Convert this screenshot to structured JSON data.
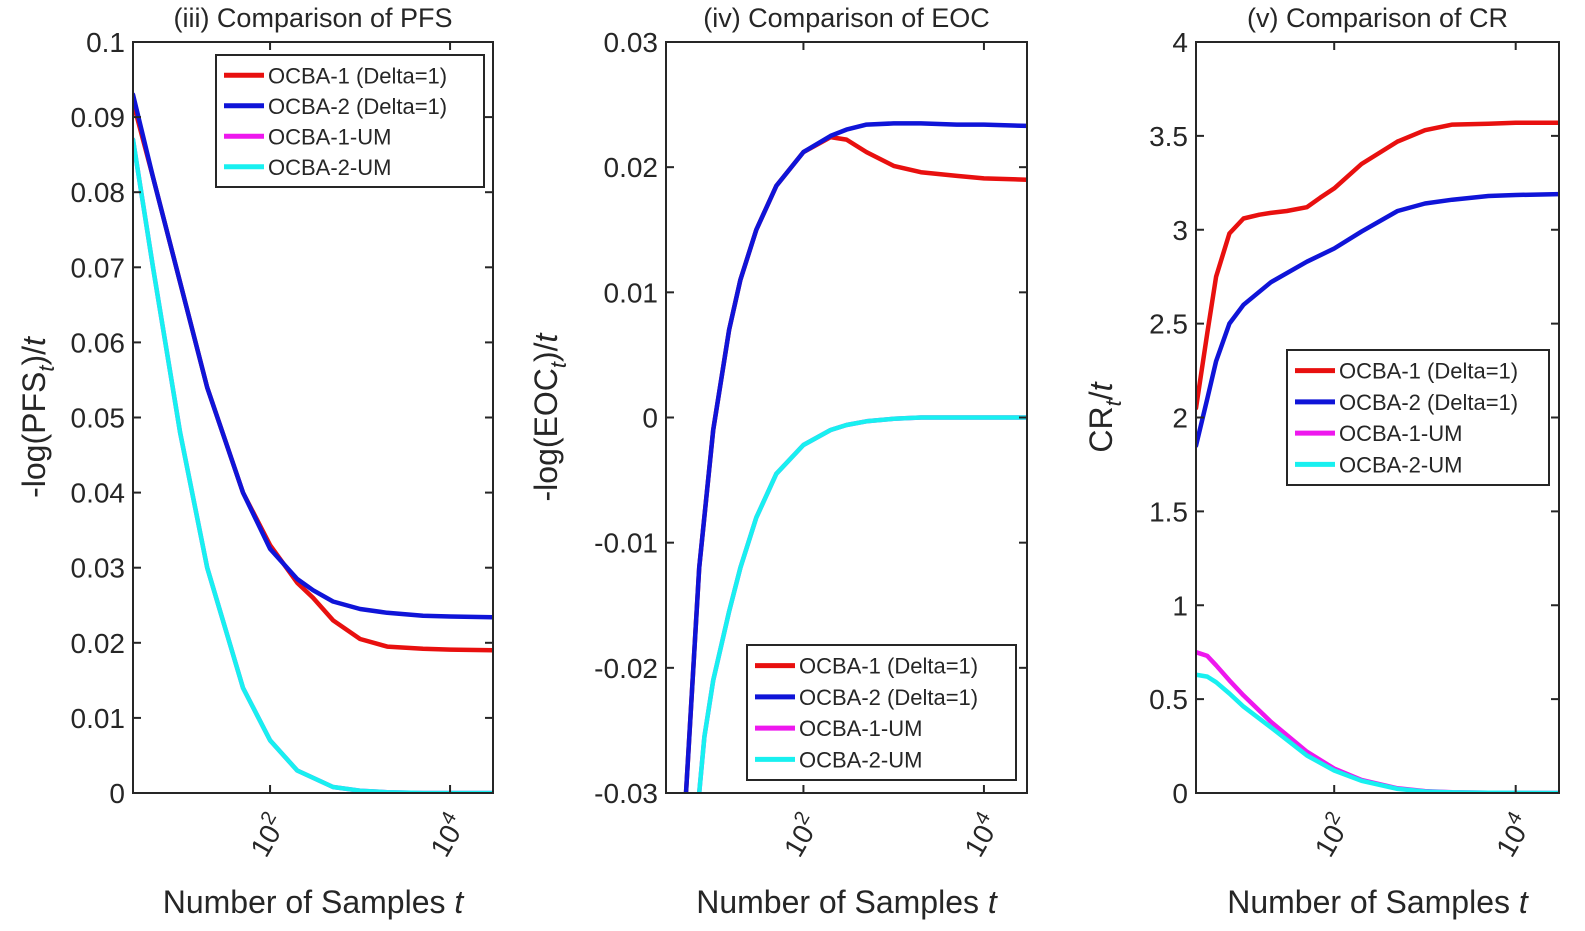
{
  "figure": {
    "xlabel_text": "Number of Samples ",
    "xlabel_var": "t"
  },
  "colors": {
    "ocba1": "#e8100f",
    "ocba2": "#0f14d8",
    "ocba1um": "#ee18ee",
    "ocba2um": "#18f0f0",
    "axis": "#262626"
  },
  "chart_data": [
    {
      "type": "line",
      "title": "(iii) Comparison of PFS",
      "ylabel": {
        "pre": "-log(PFS",
        "sub": "t",
        "post": ")/",
        "var": "t"
      },
      "xscale": "log",
      "xlim": [
        3,
        30000
      ],
      "ylim": [
        0,
        0.1
      ],
      "yticks": [
        0,
        0.01,
        0.02,
        0.03,
        0.04,
        0.05,
        0.06,
        0.07,
        0.08,
        0.09,
        0.1
      ],
      "ytick_labels": [
        "0",
        "0.01",
        "0.02",
        "0.03",
        "0.04",
        "0.05",
        "0.06",
        "0.07",
        "0.08",
        "0.09",
        "0.1"
      ],
      "xticks": [
        100,
        10000
      ],
      "xtick_labels": [
        {
          "base": "10",
          "exp": "2"
        },
        {
          "base": "10",
          "exp": "4"
        }
      ],
      "legend_position": "top-right",
      "series": [
        {
          "name": "OCBA-1 (Delta=1)",
          "color_key": "ocba1",
          "x": [
            3,
            5,
            10,
            20,
            50,
            100,
            200,
            300,
            500,
            1000,
            2000,
            5000,
            10000,
            30000
          ],
          "y": [
            0.092,
            0.082,
            0.068,
            0.054,
            0.04,
            0.033,
            0.028,
            0.026,
            0.023,
            0.0205,
            0.0195,
            0.0192,
            0.0191,
            0.019
          ]
        },
        {
          "name": "OCBA-2 (Delta=1)",
          "color_key": "ocba2",
          "x": [
            3,
            5,
            10,
            20,
            50,
            100,
            200,
            300,
            500,
            1000,
            2000,
            5000,
            10000,
            30000
          ],
          "y": [
            0.093,
            0.082,
            0.068,
            0.054,
            0.04,
            0.0325,
            0.0285,
            0.027,
            0.0255,
            0.0245,
            0.024,
            0.0236,
            0.0235,
            0.0234
          ]
        },
        {
          "name": "OCBA-1-UM",
          "color_key": "ocba1um",
          "x": [
            3,
            5,
            10,
            20,
            50,
            100,
            200,
            500,
            1000,
            2000,
            5000,
            30000
          ],
          "y": [
            0.087,
            0.07,
            0.048,
            0.03,
            0.014,
            0.007,
            0.003,
            0.0008,
            0.0003,
            0.0001,
            0.0,
            0.0
          ]
        },
        {
          "name": "OCBA-2-UM",
          "color_key": "ocba2um",
          "x": [
            3,
            5,
            10,
            20,
            50,
            100,
            200,
            500,
            1000,
            2000,
            5000,
            30000
          ],
          "y": [
            0.087,
            0.07,
            0.048,
            0.03,
            0.014,
            0.007,
            0.003,
            0.0008,
            0.0003,
            0.0001,
            0.0,
            0.0
          ]
        }
      ]
    },
    {
      "type": "line",
      "title": "(iv) Comparison of EOC",
      "ylabel": {
        "pre": "-log(EOC",
        "sub": "t",
        "post": ")/",
        "var": "t"
      },
      "xscale": "log",
      "xlim": [
        3,
        30000
      ],
      "ylim": [
        -0.03,
        0.03
      ],
      "yticks": [
        -0.03,
        -0.02,
        -0.01,
        0,
        0.01,
        0.02,
        0.03
      ],
      "ytick_labels": [
        "-0.03",
        "-0.02",
        "-0.01",
        "0",
        "0.01",
        "0.02",
        "0.03"
      ],
      "xticks": [
        100,
        10000
      ],
      "xtick_labels": [
        {
          "base": "10",
          "exp": "2"
        },
        {
          "base": "10",
          "exp": "4"
        }
      ],
      "legend_position": "bottom-right",
      "series": [
        {
          "name": "OCBA-1 (Delta=1)",
          "color_key": "ocba1",
          "x": [
            5,
            7,
            10,
            15,
            20,
            30,
            50,
            100,
            200,
            300,
            500,
            1000,
            2000,
            5000,
            10000,
            30000
          ],
          "y": [
            -0.03,
            -0.012,
            -0.001,
            0.007,
            0.011,
            0.015,
            0.0185,
            0.0212,
            0.0224,
            0.0222,
            0.0212,
            0.0201,
            0.0196,
            0.0193,
            0.0191,
            0.019
          ]
        },
        {
          "name": "OCBA-2 (Delta=1)",
          "color_key": "ocba2",
          "x": [
            5,
            7,
            10,
            15,
            20,
            30,
            50,
            100,
            200,
            300,
            500,
            1000,
            2000,
            5000,
            10000,
            30000
          ],
          "y": [
            -0.03,
            -0.012,
            -0.001,
            0.007,
            0.011,
            0.015,
            0.0185,
            0.0212,
            0.0225,
            0.023,
            0.0234,
            0.0235,
            0.0235,
            0.0234,
            0.0234,
            0.0233
          ]
        },
        {
          "name": "OCBA-1-UM",
          "color_key": "ocba1um",
          "x": [
            7,
            8,
            10,
            15,
            20,
            30,
            50,
            100,
            200,
            300,
            500,
            1000,
            2000,
            5000,
            10000,
            30000
          ],
          "y": [
            -0.03,
            -0.0255,
            -0.021,
            -0.0155,
            -0.012,
            -0.008,
            -0.0045,
            -0.0022,
            -0.001,
            -0.0006,
            -0.0003,
            -0.0001,
            0.0,
            0.0,
            0.0,
            0.0
          ]
        },
        {
          "name": "OCBA-2-UM",
          "color_key": "ocba2um",
          "x": [
            7,
            8,
            10,
            15,
            20,
            30,
            50,
            100,
            200,
            300,
            500,
            1000,
            2000,
            5000,
            10000,
            30000
          ],
          "y": [
            -0.03,
            -0.0255,
            -0.021,
            -0.0155,
            -0.012,
            -0.008,
            -0.0045,
            -0.0022,
            -0.001,
            -0.0006,
            -0.0003,
            -0.0001,
            0.0,
            0.0,
            0.0,
            0.0
          ]
        }
      ]
    },
    {
      "type": "line",
      "title": "(v) Comparison of CR",
      "ylabel": {
        "pre": "CR",
        "sub": "t",
        "post": "/",
        "var": "t"
      },
      "xscale": "log",
      "xlim": [
        3,
        30000
      ],
      "ylim": [
        0,
        4
      ],
      "yticks": [
        0,
        0.5,
        1,
        1.5,
        2,
        2.5,
        3,
        3.5,
        4
      ],
      "ytick_labels": [
        "0",
        "0.5",
        "1",
        "1.5",
        "2",
        "2.5",
        "3",
        "3.5",
        "4"
      ],
      "xticks": [
        100,
        10000
      ],
      "xtick_labels": [
        {
          "base": "10",
          "exp": "2"
        },
        {
          "base": "10",
          "exp": "4"
        }
      ],
      "legend_position": "center-right",
      "series": [
        {
          "name": "OCBA-1 (Delta=1)",
          "color_key": "ocba1",
          "x": [
            3,
            4,
            5,
            7,
            10,
            15,
            20,
            30,
            50,
            70,
            100,
            200,
            500,
            1000,
            2000,
            5000,
            10000,
            30000
          ],
          "y": [
            2.05,
            2.45,
            2.75,
            2.98,
            3.06,
            3.08,
            3.09,
            3.1,
            3.12,
            3.17,
            3.22,
            3.35,
            3.47,
            3.53,
            3.56,
            3.565,
            3.57,
            3.57
          ]
        },
        {
          "name": "OCBA-2 (Delta=1)",
          "color_key": "ocba2",
          "x": [
            3,
            4,
            5,
            7,
            10,
            20,
            50,
            100,
            200,
            500,
            1000,
            2000,
            5000,
            10000,
            30000
          ],
          "y": [
            1.85,
            2.1,
            2.3,
            2.5,
            2.6,
            2.72,
            2.83,
            2.9,
            2.99,
            3.1,
            3.14,
            3.16,
            3.18,
            3.185,
            3.19
          ]
        },
        {
          "name": "OCBA-1-UM",
          "color_key": "ocba1um",
          "x": [
            3,
            4,
            5,
            7,
            10,
            20,
            50,
            100,
            200,
            500,
            1000,
            2000,
            5000,
            30000
          ],
          "y": [
            0.75,
            0.73,
            0.68,
            0.6,
            0.52,
            0.38,
            0.22,
            0.13,
            0.07,
            0.025,
            0.01,
            0.004,
            0.001,
            0.0
          ]
        },
        {
          "name": "OCBA-2-UM",
          "color_key": "ocba2um",
          "x": [
            3,
            4,
            5,
            7,
            10,
            20,
            50,
            100,
            200,
            500,
            1000,
            2000,
            5000,
            30000
          ],
          "y": [
            0.63,
            0.62,
            0.59,
            0.53,
            0.46,
            0.35,
            0.2,
            0.12,
            0.065,
            0.022,
            0.008,
            0.003,
            0.001,
            0.0
          ]
        }
      ]
    }
  ]
}
